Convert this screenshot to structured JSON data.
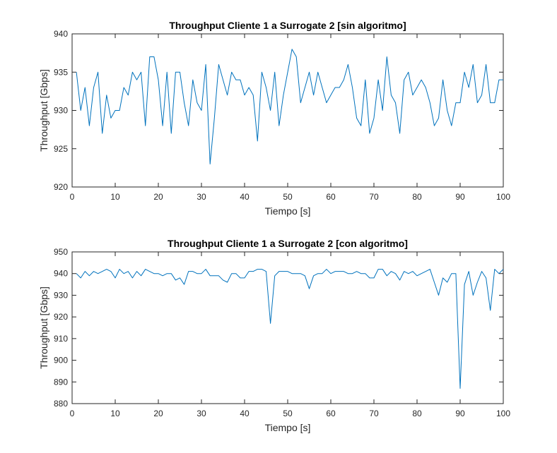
{
  "chart_data": [
    {
      "type": "line",
      "title": "Throughput Cliente 1 a Surrogate 2 [sin algoritmo]",
      "xlabel": "Tiempo [s]",
      "ylabel": "Throughput [Gbps]",
      "xlim": [
        0,
        100
      ],
      "ylim": [
        920,
        940
      ],
      "xticks": [
        0,
        10,
        20,
        30,
        40,
        50,
        60,
        70,
        80,
        90,
        100
      ],
      "yticks": [
        920,
        925,
        930,
        935,
        940
      ],
      "grid": false,
      "color": "#0072BD",
      "x": [
        1,
        2,
        3,
        4,
        5,
        6,
        7,
        8,
        9,
        10,
        11,
        12,
        13,
        14,
        15,
        16,
        17,
        18,
        19,
        20,
        21,
        22,
        23,
        24,
        25,
        26,
        27,
        28,
        29,
        30,
        31,
        32,
        33,
        34,
        35,
        36,
        37,
        38,
        39,
        40,
        41,
        42,
        43,
        44,
        45,
        46,
        47,
        48,
        49,
        50,
        51,
        52,
        53,
        54,
        55,
        56,
        57,
        58,
        59,
        60,
        61,
        62,
        63,
        64,
        65,
        66,
        67,
        68,
        69,
        70,
        71,
        72,
        73,
        74,
        75,
        76,
        77,
        78,
        79,
        80,
        81,
        82,
        83,
        84,
        85,
        86,
        87,
        88,
        89,
        90,
        91,
        92,
        93,
        94,
        95,
        96,
        97,
        98,
        99,
        100
      ],
      "y": [
        935,
        930,
        933,
        928,
        933,
        935,
        927,
        932,
        929,
        930,
        930,
        933,
        932,
        935,
        934,
        935,
        928,
        937,
        937,
        934,
        928,
        935,
        927,
        935,
        935,
        931,
        928,
        934,
        931,
        930,
        936,
        923,
        929,
        936,
        934,
        932,
        935,
        934,
        934,
        932,
        933,
        932,
        926,
        935,
        933,
        930,
        935,
        928,
        932,
        935,
        938,
        937,
        931,
        933,
        935,
        932,
        935,
        933,
        931,
        932,
        933,
        933,
        934,
        936,
        933,
        929,
        928,
        934,
        927,
        929,
        934,
        930,
        937,
        932,
        931,
        927,
        934,
        935,
        932,
        933,
        934,
        933,
        931,
        928,
        929,
        934,
        930,
        928,
        931,
        931,
        935,
        933,
        936,
        931,
        932,
        936,
        931,
        931,
        934,
        934
      ]
    },
    {
      "type": "line",
      "title": "Throughput Cliente 1 a Surrogate 2 [con algoritmo]",
      "xlabel": "Tiempo [s]",
      "ylabel": "Throughput [Gbps]",
      "xlim": [
        0,
        100
      ],
      "ylim": [
        880,
        950
      ],
      "xticks": [
        0,
        10,
        20,
        30,
        40,
        50,
        60,
        70,
        80,
        90,
        100
      ],
      "yticks": [
        880,
        890,
        900,
        910,
        920,
        930,
        940,
        950
      ],
      "grid": false,
      "color": "#0072BD",
      "x": [
        1,
        2,
        3,
        4,
        5,
        6,
        7,
        8,
        9,
        10,
        11,
        12,
        13,
        14,
        15,
        16,
        17,
        18,
        19,
        20,
        21,
        22,
        23,
        24,
        25,
        26,
        27,
        28,
        29,
        30,
        31,
        32,
        33,
        34,
        35,
        36,
        37,
        38,
        39,
        40,
        41,
        42,
        43,
        44,
        45,
        46,
        47,
        48,
        49,
        50,
        51,
        52,
        53,
        54,
        55,
        56,
        57,
        58,
        59,
        60,
        61,
        62,
        63,
        64,
        65,
        66,
        67,
        68,
        69,
        70,
        71,
        72,
        73,
        74,
        75,
        76,
        77,
        78,
        79,
        80,
        81,
        82,
        83,
        84,
        85,
        86,
        87,
        88,
        89,
        90,
        91,
        92,
        93,
        94,
        95,
        96,
        97,
        98,
        99,
        100
      ],
      "y": [
        940,
        938,
        941,
        939,
        941,
        940,
        941,
        942,
        941,
        938,
        942,
        940,
        941,
        938,
        941,
        939,
        942,
        941,
        940,
        940,
        939,
        940,
        940,
        937,
        938,
        935,
        941,
        941,
        940,
        940,
        942,
        939,
        939,
        939,
        937,
        936,
        940,
        940,
        938,
        938,
        941,
        941,
        942,
        942,
        941,
        917,
        939,
        941,
        941,
        941,
        940,
        940,
        940,
        939,
        933,
        939,
        940,
        940,
        942,
        940,
        941,
        941,
        941,
        940,
        940,
        941,
        940,
        940,
        938,
        938,
        942,
        942,
        939,
        941,
        940,
        937,
        941,
        940,
        941,
        939,
        940,
        941,
        942,
        936,
        930,
        938,
        936,
        940,
        940,
        887,
        935,
        941,
        930,
        936,
        941,
        938,
        923,
        942,
        940,
        942
      ]
    }
  ]
}
